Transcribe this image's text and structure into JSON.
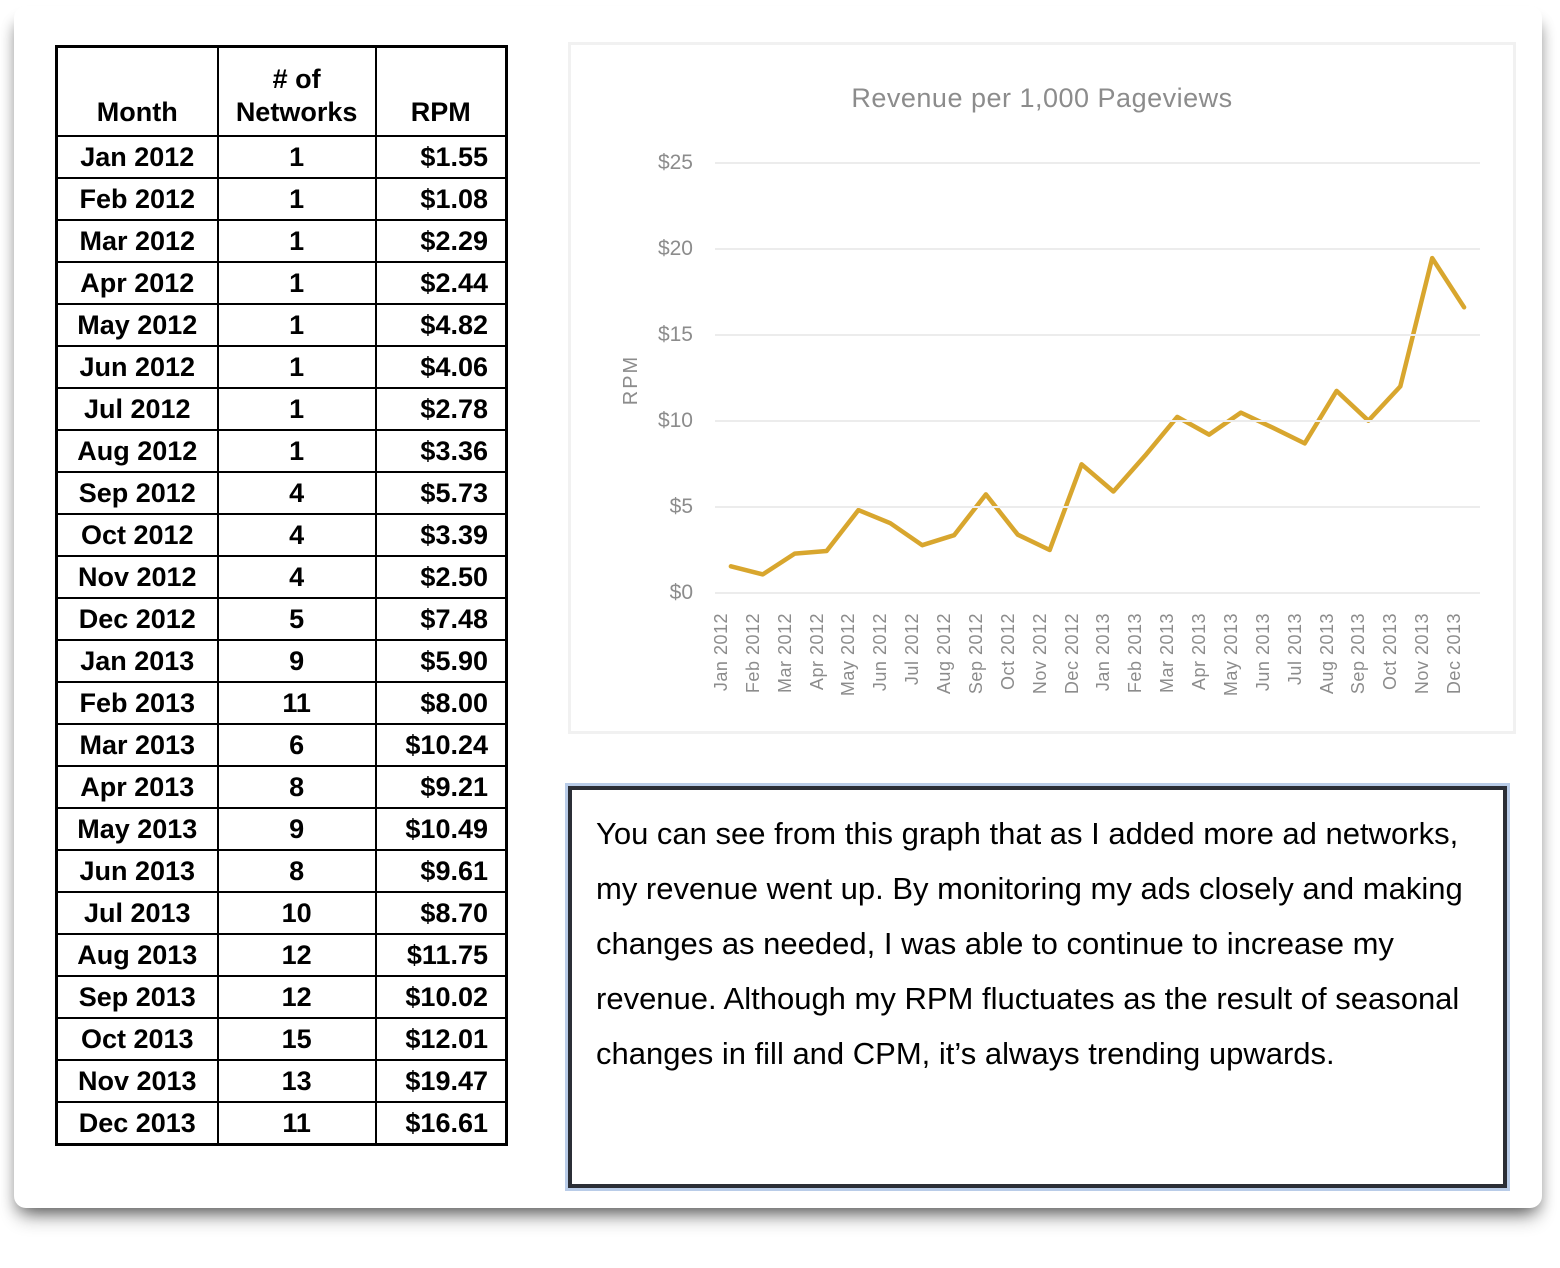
{
  "table": {
    "columns": [
      "Month",
      "# of\nNetworks",
      "RPM"
    ],
    "rows": [
      [
        "Jan 2012",
        "1",
        "$1.55"
      ],
      [
        "Feb 2012",
        "1",
        "$1.08"
      ],
      [
        "Mar 2012",
        "1",
        "$2.29"
      ],
      [
        "Apr 2012",
        "1",
        "$2.44"
      ],
      [
        "May 2012",
        "1",
        "$4.82"
      ],
      [
        "Jun 2012",
        "1",
        "$4.06"
      ],
      [
        "Jul 2012",
        "1",
        "$2.78"
      ],
      [
        "Aug 2012",
        "1",
        "$3.36"
      ],
      [
        "Sep 2012",
        "4",
        "$5.73"
      ],
      [
        "Oct 2012",
        "4",
        "$3.39"
      ],
      [
        "Nov 2012",
        "4",
        "$2.50"
      ],
      [
        "Dec 2012",
        "5",
        "$7.48"
      ],
      [
        "Jan 2013",
        "9",
        "$5.90"
      ],
      [
        "Feb 2013",
        "11",
        "$8.00"
      ],
      [
        "Mar 2013",
        "6",
        "$10.24"
      ],
      [
        "Apr 2013",
        "8",
        "$9.21"
      ],
      [
        "May 2013",
        "9",
        "$10.49"
      ],
      [
        "Jun 2013",
        "8",
        "$9.61"
      ],
      [
        "Jul 2013",
        "10",
        "$8.70"
      ],
      [
        "Aug 2013",
        "12",
        "$11.75"
      ],
      [
        "Sep 2013",
        "12",
        "$10.02"
      ],
      [
        "Oct 2013",
        "15",
        "$12.01"
      ],
      [
        "Nov 2013",
        "13",
        "$19.47"
      ],
      [
        "Dec 2013",
        "11",
        "$16.61"
      ]
    ]
  },
  "chart_data": {
    "type": "line",
    "title": "Revenue per 1,000 Pageviews",
    "xlabel": "",
    "ylabel": "RPM",
    "categories": [
      "Jan 2012",
      "Feb 2012",
      "Mar 2012",
      "Apr 2012",
      "May 2012",
      "Jun 2012",
      "Jul 2012",
      "Aug 2012",
      "Sep 2012",
      "Oct 2012",
      "Nov 2012",
      "Dec 2012",
      "Jan 2013",
      "Feb 2013",
      "Mar 2013",
      "Apr 2013",
      "May 2013",
      "Jun 2013",
      "Jul 2013",
      "Aug 2013",
      "Sep 2013",
      "Oct 2013",
      "Nov 2013",
      "Dec 2013"
    ],
    "values": [
      1.55,
      1.08,
      2.29,
      2.44,
      4.82,
      4.06,
      2.78,
      3.36,
      5.73,
      3.39,
      2.5,
      7.48,
      5.9,
      8.0,
      10.24,
      9.21,
      10.49,
      9.61,
      8.7,
      11.75,
      10.02,
      12.01,
      19.47,
      16.61
    ],
    "ylim": [
      0,
      25
    ],
    "ytick_values": [
      0,
      5,
      10,
      15,
      20,
      25
    ],
    "ytick_labels": [
      "$0",
      "$5",
      "$10",
      "$15",
      "$20",
      "$25"
    ],
    "grid": true,
    "legend": "none",
    "line_color": "#D8A62E",
    "gridline_color": "#ececec",
    "text_color": "#8c8c8c"
  },
  "note": {
    "text": "You can see from this graph that as I added more ad networks, my revenue went up. By monitoring my ads closely and making changes as needed, I was able to continue to increase my revenue. Although my RPM fluctuates as the result of seasonal changes in fill and CPM, it’s always trending upwards."
  }
}
